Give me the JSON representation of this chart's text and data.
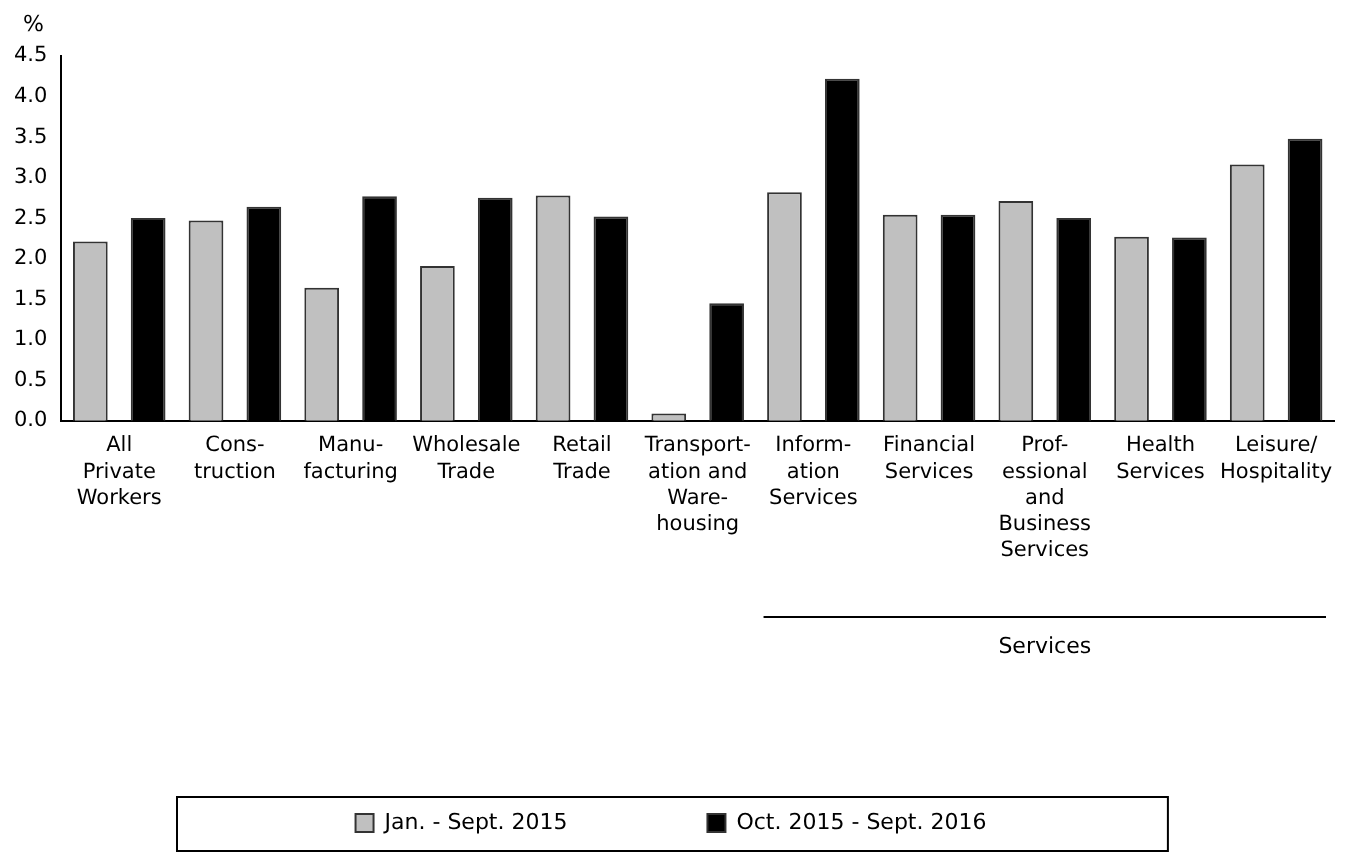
{
  "chart_data": {
    "type": "bar",
    "ylabel": "%",
    "categories": [
      "All\nPrivate\nWorkers",
      "Cons-\ntruction",
      "Manu-\nfacturing",
      "Wholesale\nTrade",
      "Retail\nTrade",
      "Transport-\nation and\nWare-\nhousing",
      "Inform-\nation\nServices",
      "Financial\nServices",
      "Prof-\nessional\nand\nBusiness\nServices",
      "Health\nServices",
      "Leisure/\nHospitality"
    ],
    "series": [
      {
        "name": "Jan. - Sept. 2015",
        "color": "#c0c0c0",
        "values": [
          2.21,
          2.47,
          1.64,
          1.91,
          2.78,
          0.09,
          2.82,
          2.54,
          2.71,
          2.27,
          3.16
        ]
      },
      {
        "name": "Oct. 2015 - Sept. 2016",
        "color": "#000000",
        "values": [
          2.5,
          2.64,
          2.77,
          2.75,
          2.52,
          1.45,
          4.22,
          2.54,
          2.5,
          2.26,
          3.48
        ]
      }
    ],
    "ylim": [
      0,
      4.5
    ],
    "yticks": [
      {
        "value": 0,
        "label": "0.0"
      },
      {
        "value": 0.5,
        "label": "0.5"
      },
      {
        "value": 1,
        "label": "1.0"
      },
      {
        "value": 1.5,
        "label": "1.5"
      },
      {
        "value": 2,
        "label": "2.0"
      },
      {
        "value": 2.5,
        "label": "2.5"
      },
      {
        "value": 3,
        "label": "3.0"
      },
      {
        "value": 3.5,
        "label": "3.5"
      },
      {
        "value": 4,
        "label": "4.0"
      },
      {
        "value": 4.5,
        "label": "4.5"
      }
    ],
    "grid": false,
    "legend": "bottom",
    "annotations": [
      "Services"
    ]
  }
}
